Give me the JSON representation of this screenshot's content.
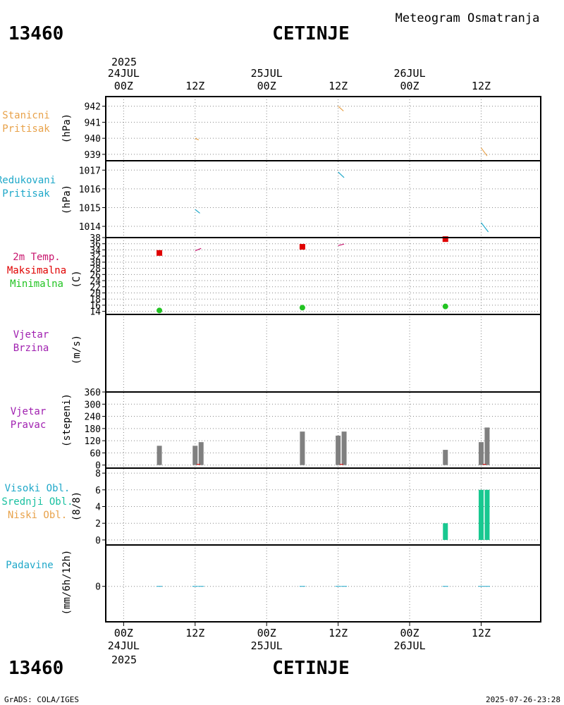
{
  "header": {
    "station_id": "13460",
    "station_name": "CETINJE",
    "product_title": "Meteogram Osmatranja"
  },
  "footer": {
    "station_id": "13460",
    "station_name": "CETINJE",
    "credit": "GrADS: COLA/IGES",
    "timestamp": "2025-07-26-23:28"
  },
  "time_axis": {
    "year": "2025",
    "top_ticks": [
      {
        "hour": 0,
        "label": "00Z",
        "date": "24JUL"
      },
      {
        "hour": 12,
        "label": "12Z",
        "date": ""
      },
      {
        "hour": 24,
        "label": "00Z",
        "date": "25JUL"
      },
      {
        "hour": 36,
        "label": "12Z",
        "date": ""
      },
      {
        "hour": 48,
        "label": "00Z",
        "date": "26JUL"
      },
      {
        "hour": 60,
        "label": "12Z",
        "date": ""
      }
    ],
    "range_hours": [
      -3,
      70
    ]
  },
  "panels": [
    {
      "key": "stanicni",
      "labels": [
        {
          "text": "Stanicni",
          "color": "#e8a24a"
        },
        {
          "text": "Pritisak",
          "color": "#e8a24a"
        }
      ],
      "unit": "(hPa)"
    },
    {
      "key": "redukovani",
      "labels": [
        {
          "text": "Redukovani",
          "color": "#1fa8c9"
        },
        {
          "text": "Pritisak",
          "color": "#1fa8c9"
        }
      ],
      "unit": "(hPa)"
    },
    {
      "key": "temp",
      "labels": [
        {
          "text": "2m Temp.",
          "color": "#c8166e"
        },
        {
          "text": "Maksimalna",
          "color": "#e00000"
        },
        {
          "text": "Minimalna",
          "color": "#22c422"
        }
      ],
      "unit": "(C)"
    },
    {
      "key": "brzina",
      "labels": [
        {
          "text": "Vjetar",
          "color": "#a020b0"
        },
        {
          "text": "Brzina",
          "color": "#a020b0"
        }
      ],
      "unit": "(m/s)"
    },
    {
      "key": "pravac",
      "labels": [
        {
          "text": "Vjetar",
          "color": "#a020b0"
        },
        {
          "text": "Pravac",
          "color": "#a020b0"
        }
      ],
      "unit": "(stepeni)"
    },
    {
      "key": "oblacnost",
      "labels": [
        {
          "text": "Visoki Obl.",
          "color": "#1fa8c9"
        },
        {
          "text": "Srednji Obl.",
          "color": "#18c0a0"
        },
        {
          "text": "Niski Obl.",
          "color": "#e8a24a"
        }
      ],
      "unit": "(8/8)"
    },
    {
      "key": "padavine",
      "labels": [
        {
          "text": "Padavine",
          "color": "#1fa8c9"
        }
      ],
      "unit": "(mm/6h/12h)"
    }
  ],
  "chart_data": [
    {
      "type": "line",
      "panel": "stanicni",
      "ylabel": "(hPa)",
      "yticks": [
        939,
        940,
        941,
        942
      ],
      "ylim": [
        938.6,
        942.6
      ],
      "grid": true,
      "color": "#e8a24a",
      "series": [
        {
          "x": [
            12,
            12.6
          ],
          "y": [
            940.0,
            939.9
          ]
        },
        {
          "x": [
            36,
            36.9
          ],
          "y": [
            942.0,
            941.7
          ]
        },
        {
          "x": [
            60,
            61.0
          ],
          "y": [
            939.4,
            938.9
          ]
        }
      ]
    },
    {
      "type": "line",
      "panel": "redukovani",
      "ylabel": "(hPa)",
      "yticks": [
        1014,
        1015,
        1016,
        1017
      ],
      "ylim": [
        1013.4,
        1017.5
      ],
      "grid": true,
      "color": "#1fa8c9",
      "series": [
        {
          "x": [
            12,
            12.8
          ],
          "y": [
            1014.9,
            1014.7
          ]
        },
        {
          "x": [
            36,
            37.0
          ],
          "y": [
            1016.9,
            1016.6
          ]
        },
        {
          "x": [
            60,
            61.2
          ],
          "y": [
            1014.2,
            1013.7
          ]
        }
      ]
    },
    {
      "type": "scatter",
      "panel": "temp",
      "ylabel": "(C)",
      "yticks": [
        14,
        16,
        18,
        20,
        22,
        24,
        26,
        28,
        30,
        32,
        34,
        36,
        38
      ],
      "ylim": [
        13,
        38
      ],
      "grid": true,
      "temp_2m": [
        {
          "x": [
            12,
            13.0
          ],
          "y": [
            33.7,
            34.5
          ]
        },
        {
          "x": [
            36,
            37.0
          ],
          "y": [
            35.4,
            35.9
          ]
        },
        {
          "x": [
            60,
            61.2
          ],
          "y": [
            38.0,
            37.9
          ]
        }
      ],
      "maksimalna": {
        "x": [
          6,
          30,
          54
        ],
        "y": [
          33.0,
          35.0,
          37.5
        ]
      },
      "minimalna": {
        "x": [
          6,
          30,
          54
        ],
        "y": [
          14.3,
          15.2,
          15.6
        ]
      }
    },
    {
      "type": "line",
      "panel": "brzina",
      "ylabel": "(m/s)",
      "series": []
    },
    {
      "type": "bar",
      "panel": "pravac",
      "ylabel": "(stepeni)",
      "yticks": [
        0,
        60,
        120,
        180,
        240,
        300,
        360
      ],
      "ylim": [
        -15,
        360
      ],
      "grid": true,
      "bar_color": "#808080",
      "x": [
        6,
        12,
        13,
        30,
        36,
        37,
        54,
        60,
        61
      ],
      "values": [
        95,
        95,
        113,
        165,
        145,
        165,
        75,
        113,
        185
      ]
    },
    {
      "type": "bar",
      "panel": "oblacnost",
      "ylabel": "(8/8)",
      "yticks": [
        0,
        2,
        4,
        6,
        8
      ],
      "ylim": [
        -0.6,
        8.6
      ],
      "grid": true,
      "bar_color": "#18c890",
      "x": [
        54,
        60,
        61
      ],
      "values": [
        2,
        6,
        6
      ]
    },
    {
      "type": "bar",
      "panel": "padavine",
      "ylabel": "(mm/6h/12h)",
      "yticks": [
        0
      ],
      "ylim": [
        -3,
        3.5
      ],
      "grid": true,
      "bar_color": "#1fa8c9",
      "x": [
        6,
        12,
        13,
        30,
        36,
        37,
        54,
        60,
        61
      ],
      "values": [
        0,
        0,
        0,
        0,
        0,
        0,
        0,
        0,
        0
      ]
    }
  ]
}
